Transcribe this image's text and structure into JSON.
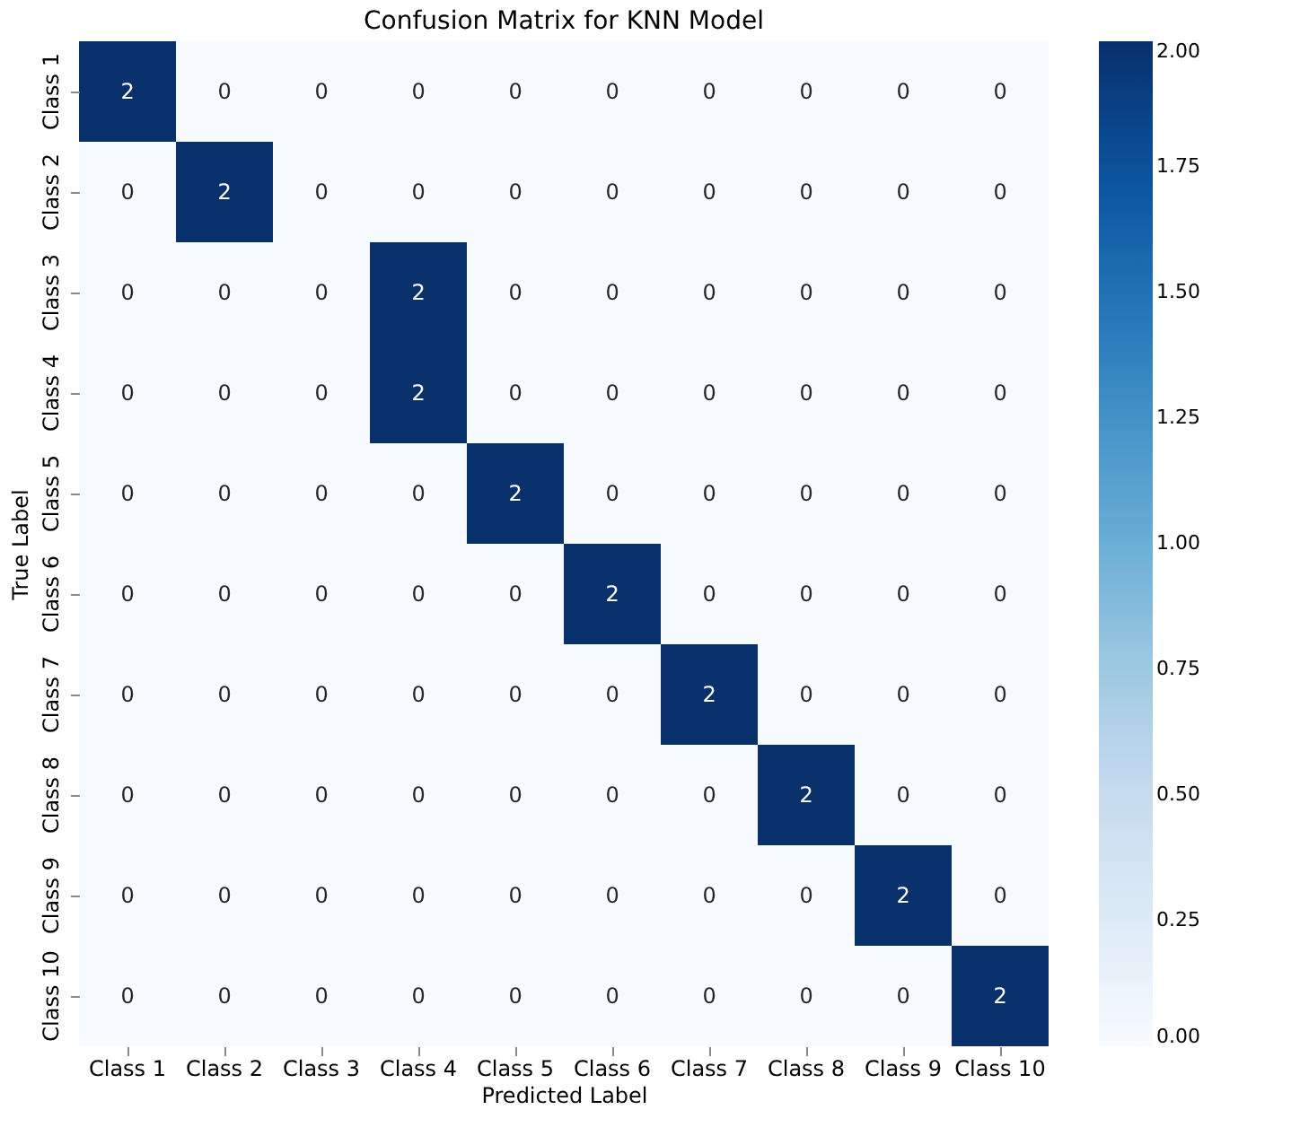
{
  "chart_data": {
    "type": "heatmap",
    "title": "Confusion Matrix for KNN Model",
    "xlabel": "Predicted Label",
    "ylabel": "True Label",
    "categories": [
      "Class 1",
      "Class 2",
      "Class 3",
      "Class 4",
      "Class 5",
      "Class 6",
      "Class 7",
      "Class 8",
      "Class 9",
      "Class 10"
    ],
    "y_categories": [
      "Class 1",
      "Class 2",
      "Class 3",
      "Class 4",
      "Class 5",
      "Class 6",
      "Class 7",
      "Class 8",
      "Class 9",
      "Class 10"
    ],
    "cells": [
      [
        2,
        0,
        0,
        0,
        0,
        0,
        0,
        0,
        0,
        0
      ],
      [
        0,
        2,
        0,
        0,
        0,
        0,
        0,
        0,
        0,
        0
      ],
      [
        0,
        0,
        0,
        2,
        0,
        0,
        0,
        0,
        0,
        0
      ],
      [
        0,
        0,
        0,
        2,
        0,
        0,
        0,
        0,
        0,
        0
      ],
      [
        0,
        0,
        0,
        0,
        2,
        0,
        0,
        0,
        0,
        0
      ],
      [
        0,
        0,
        0,
        0,
        0,
        2,
        0,
        0,
        0,
        0
      ],
      [
        0,
        0,
        0,
        0,
        0,
        0,
        2,
        0,
        0,
        0
      ],
      [
        0,
        0,
        0,
        0,
        0,
        0,
        0,
        2,
        0,
        0
      ],
      [
        0,
        0,
        0,
        0,
        0,
        0,
        0,
        0,
        2,
        0
      ],
      [
        0,
        0,
        0,
        0,
        0,
        0,
        0,
        0,
        0,
        2
      ]
    ],
    "data_labels": true,
    "clim": [
      0,
      2
    ],
    "cticks": [
      {
        "value": 0,
        "label": "0.00"
      },
      {
        "value": 0.25,
        "label": "0.25"
      },
      {
        "value": 0.5,
        "label": "0.50"
      },
      {
        "value": 0.75,
        "label": "0.75"
      },
      {
        "value": 1,
        "label": "1.00"
      },
      {
        "value": 1.25,
        "label": "1.25"
      },
      {
        "value": 1.5,
        "label": "1.50"
      },
      {
        "value": 1.75,
        "label": "1.75"
      },
      {
        "value": 2,
        "label": "2.00"
      }
    ]
  }
}
